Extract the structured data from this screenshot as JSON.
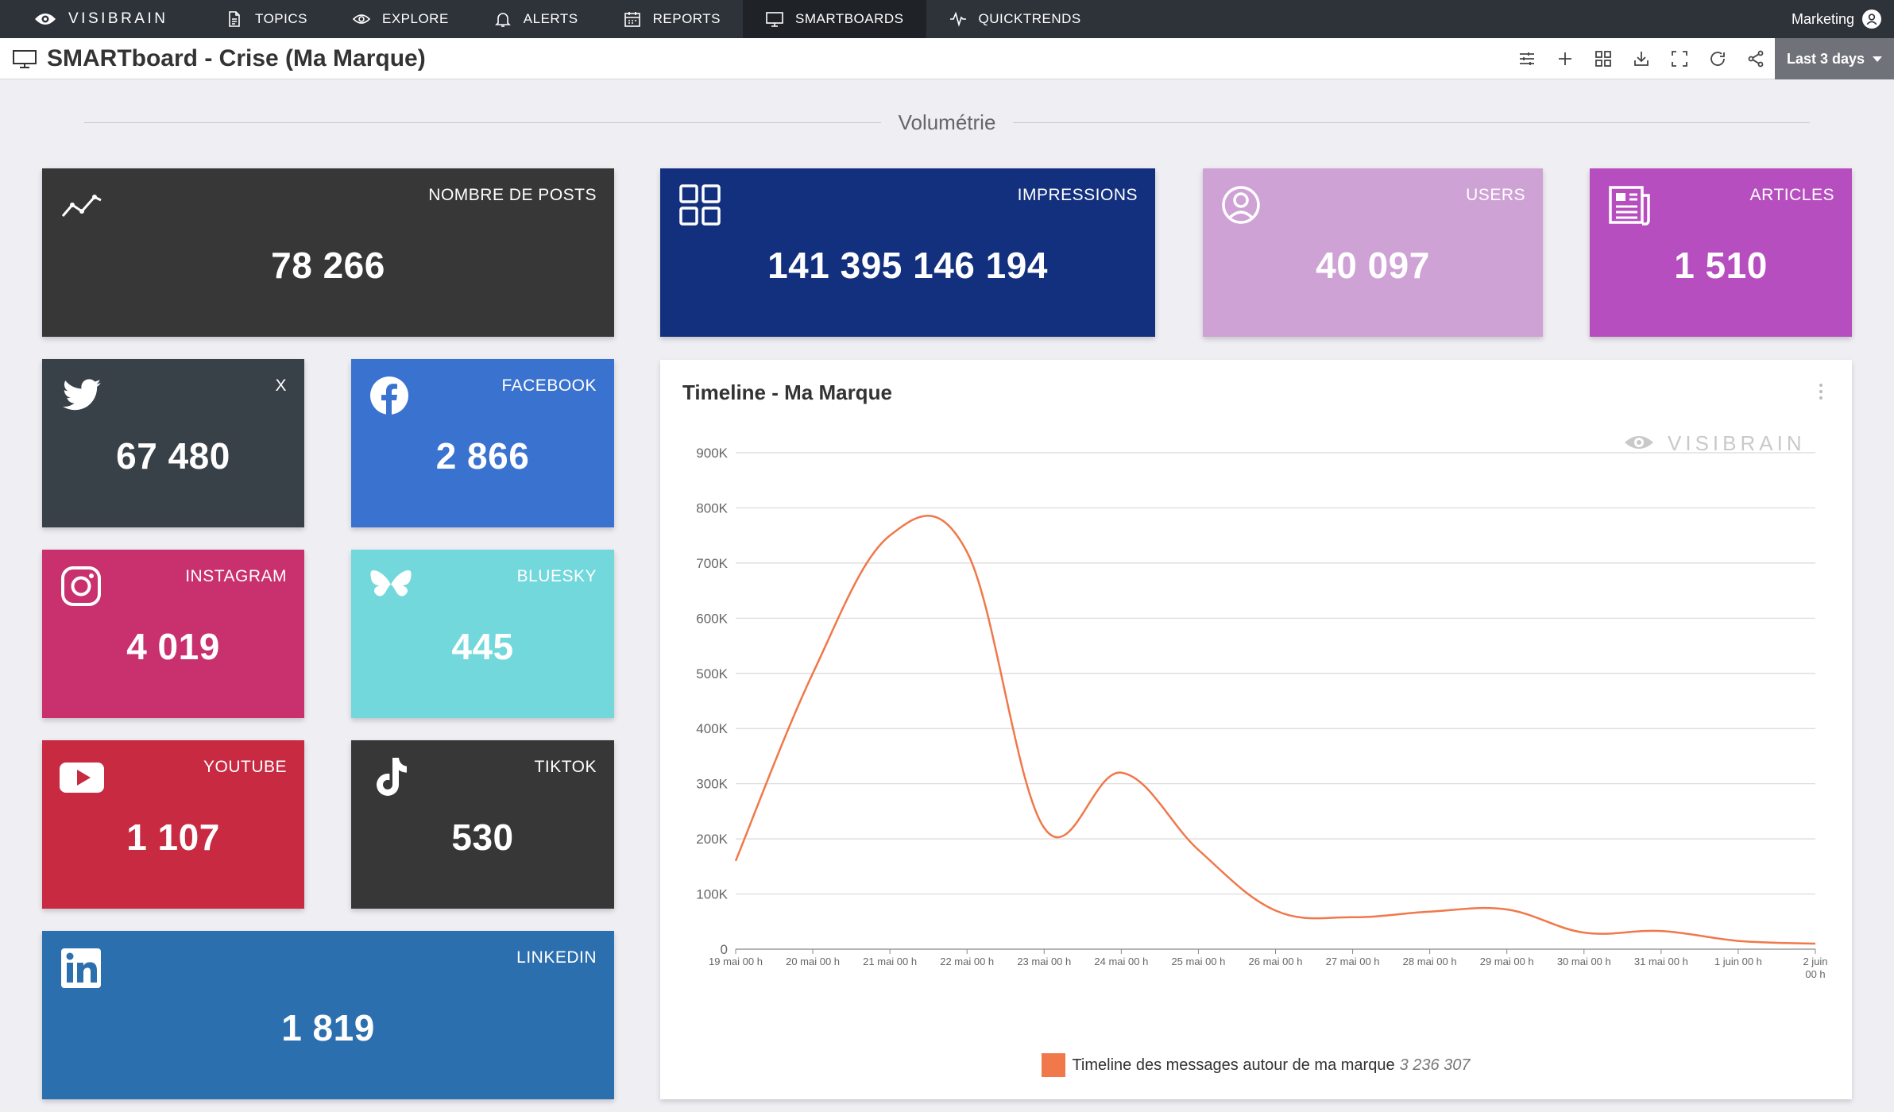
{
  "nav": {
    "brand": "VISIBRAIN",
    "items": [
      {
        "label": "TOPICS"
      },
      {
        "label": "EXPLORE"
      },
      {
        "label": "ALERTS"
      },
      {
        "label": "REPORTS"
      },
      {
        "label": "SMARTBOARDS"
      },
      {
        "label": "QUICKTRENDS"
      }
    ],
    "user": "Marketing"
  },
  "header": {
    "title": "SMARTboard - Crise (Ma Marque)",
    "range": "Last 3 days"
  },
  "section": {
    "title": "Volumétrie"
  },
  "tiles": {
    "posts": {
      "label": "NOMBRE DE POSTS",
      "value": "78 266"
    },
    "impressions": {
      "label": "IMPRESSIONS",
      "value": "141 395 146 194"
    },
    "users": {
      "label": "USERS",
      "value": "40 097"
    },
    "articles": {
      "label": "ARTICLES",
      "value": "1 510"
    },
    "x": {
      "label": "X",
      "value": "67 480"
    },
    "facebook": {
      "label": "FACEBOOK",
      "value": "2 866"
    },
    "instagram": {
      "label": "INSTAGRAM",
      "value": "4 019"
    },
    "bluesky": {
      "label": "BLUESKY",
      "value": "445"
    },
    "youtube": {
      "label": "YOUTUBE",
      "value": "1 107"
    },
    "tiktok": {
      "label": "TIKTOK",
      "value": "530"
    },
    "linkedin": {
      "label": "LINKEDIN",
      "value": "1 819"
    }
  },
  "colors": {
    "posts": "#373737",
    "impressions": "#13307e",
    "users": "#cfa2d6",
    "articles": "#b74ec0",
    "x": "#394148",
    "facebook": "#3a72cf",
    "instagram": "#c9306e",
    "bluesky": "#72d8dc",
    "youtube": "#c82a42",
    "tiktok": "#373737",
    "linkedin": "#2c6faf",
    "series": "#f0784a"
  },
  "chart": {
    "title": "Timeline - Ma Marque",
    "watermark": "VISIBRAIN"
  },
  "chart_data": {
    "type": "line",
    "title": "Timeline - Ma Marque",
    "x": [
      "19 mai 00 h",
      "20 mai 00 h",
      "21 mai 00 h",
      "22 mai 00 h",
      "23 mai 00 h",
      "24 mai 00 h",
      "25 mai 00 h",
      "26 mai 00 h",
      "27 mai 00 h",
      "28 mai 00 h",
      "29 mai 00 h",
      "30 mai 00 h",
      "31 mai 00 h",
      "1 juin 00 h",
      "2 juin 00 h"
    ],
    "y_ticks": [
      "0",
      "100K",
      "200K",
      "300K",
      "400K",
      "500K",
      "600K",
      "700K",
      "800K",
      "900K"
    ],
    "ylim": [
      0,
      900000
    ],
    "series": [
      {
        "name": "Timeline des messages autour de ma marque",
        "total": "3 236 307",
        "values": [
          160000,
          500000,
          750000,
          720000,
          220000,
          320000,
          180000,
          70000,
          58000,
          68000,
          72000,
          30000,
          33000,
          15000,
          10000
        ]
      }
    ],
    "legend_position": "bottom"
  }
}
